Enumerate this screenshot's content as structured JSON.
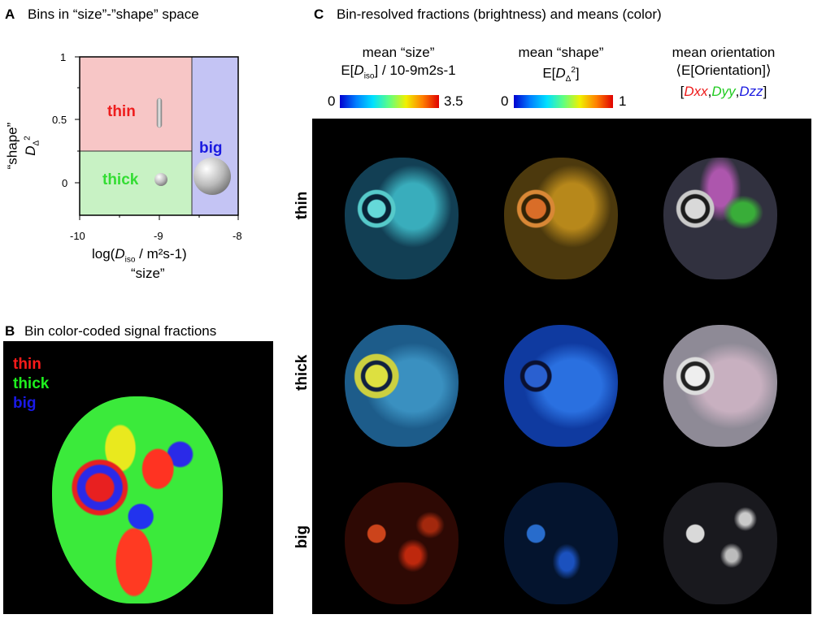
{
  "panel_a": {
    "letter": "A",
    "title": "Bins in “size”-”shape” space",
    "y_ticks": [
      "1",
      "0.5",
      "0"
    ],
    "x_ticks": [
      "-10",
      "-9",
      "-8"
    ],
    "y_label_top": "“shape”",
    "y_label_sym": "D",
    "y_label_sub": "Δ",
    "y_label_sup": "2",
    "x_label_pre": "log(",
    "x_label_D": "D",
    "x_label_sub": "iso",
    "x_label_post": " / m²s-1)",
    "x_label_bottom": "“size”",
    "bins": {
      "thin": "thin",
      "thick": "thick",
      "big": "big"
    },
    "colors": {
      "thin": "#f7c6c6",
      "thick": "#c8f2c4",
      "big": "#c4c4f4",
      "thin_text": "#ee1c1c",
      "thick_text": "#33dd33",
      "big_text": "#1a1ae0"
    }
  },
  "panel_b": {
    "letter": "B",
    "title": "Bin color-coded signal fractions",
    "legend": {
      "thin": "thin",
      "thick": "thick",
      "big": "big"
    }
  },
  "panel_c": {
    "letter": "C",
    "title": "Bin-resolved fractions (brightness) and means (color)",
    "col1": {
      "line1": "mean “size”",
      "line2_pre": "E[",
      "line2_D": "D",
      "line2_sub": "iso",
      "line2_post": "] / 10-9m2s-1",
      "cb_min": "0",
      "cb_max": "3.5"
    },
    "col2": {
      "line1": "mean “shape”",
      "line2_pre": "E[",
      "line2_D": "D",
      "line2_sub": "Δ",
      "line2_sup": "2",
      "line2_post": "]",
      "cb_min": "0",
      "cb_max": "1"
    },
    "col3": {
      "line1": "mean orientation",
      "line2": "⟨E[Orientation]⟩",
      "bracket_open": "[",
      "dxx": "Dxx",
      "comma1": ",",
      "dyy": "Dyy",
      "comma2": ",",
      "dzz": "Dzz",
      "bracket_close": "]"
    },
    "rows": [
      "thin",
      "thick",
      "big"
    ]
  }
}
